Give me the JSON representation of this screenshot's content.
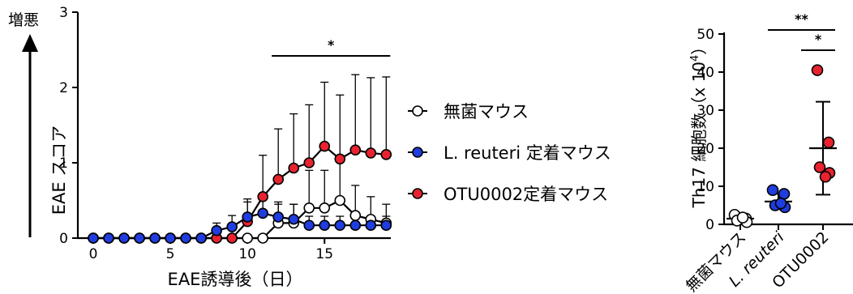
{
  "side_label": "増悪",
  "chart_data": [
    {
      "type": "line",
      "xlabel": "EAE誘導後（日）",
      "ylabel": "EAE スコア",
      "xlim": [
        -1,
        19.3
      ],
      "ylim": [
        0,
        3
      ],
      "xticks": [
        0,
        5,
        10,
        15
      ],
      "yticks": [
        0,
        1,
        2,
        3
      ],
      "annotations": [
        {
          "text": "*",
          "x_range": [
            12,
            19
          ]
        }
      ],
      "series": [
        {
          "name": "無菌マウス",
          "color": "#ffffff",
          "x": [
            0,
            1,
            2,
            3,
            4,
            5,
            6,
            7,
            8,
            9,
            10,
            11,
            12,
            13,
            14,
            15,
            16,
            17,
            18,
            19
          ],
          "y": [
            0,
            0,
            0,
            0,
            0,
            0,
            0,
            0,
            0,
            0,
            0,
            0,
            0.2,
            0.2,
            0.4,
            0.4,
            0.5,
            0.3,
            0.25,
            0.2
          ],
          "error": [
            0,
            0,
            0,
            0,
            0,
            0,
            0,
            0,
            0,
            0,
            0,
            0,
            0.25,
            0.25,
            0.5,
            0.5,
            0.6,
            0.4,
            0.3,
            0.25
          ]
        },
        {
          "name": "L. reuteri 定着マウス",
          "color": "#1f3de0",
          "x": [
            0,
            1,
            2,
            3,
            4,
            5,
            6,
            7,
            8,
            9,
            10,
            11,
            12,
            13,
            14,
            15,
            16,
            17,
            18,
            19
          ],
          "y": [
            0,
            0,
            0,
            0,
            0,
            0,
            0,
            0,
            0.1,
            0.15,
            0.28,
            0.33,
            0.28,
            0.25,
            0.17,
            0.17,
            0.17,
            0.17,
            0.17,
            0.17
          ],
          "error": [
            0,
            0,
            0,
            0,
            0,
            0,
            0,
            0,
            0.1,
            0.15,
            0.2,
            0.25,
            0.2,
            0.2,
            0.12,
            0.12,
            0.12,
            0.12,
            0.12,
            0.12
          ]
        },
        {
          "name": "OTU0002定着マウス",
          "color": "#e8232f",
          "x": [
            0,
            1,
            2,
            3,
            4,
            5,
            6,
            7,
            8,
            9,
            10,
            11,
            12,
            13,
            14,
            15,
            16,
            17,
            18,
            19
          ],
          "y": [
            0,
            0,
            0,
            0,
            0,
            0,
            0,
            0,
            0,
            0,
            0.22,
            0.55,
            0.78,
            0.93,
            1.0,
            1.22,
            1.05,
            1.17,
            1.13,
            1.11
          ],
          "error": [
            0,
            0,
            0,
            0,
            0,
            0,
            0,
            0,
            0,
            0,
            0.3,
            0.55,
            0.67,
            0.72,
            0.77,
            0.85,
            0.85,
            1.0,
            1.0,
            1.03
          ]
        }
      ]
    },
    {
      "type": "scatter",
      "ylabel": "Th17 細胞数（x 10",
      "ylabel_sup": "4",
      "ylabel_close": "）",
      "ylim": [
        0,
        50
      ],
      "yticks": [
        0,
        10,
        20,
        30,
        40,
        50
      ],
      "categories": [
        "無菌マウス",
        "L. reuteri",
        "OTU0002"
      ],
      "annotations": [
        {
          "text": "**",
          "between": [
            "無菌マウス",
            "OTU0002"
          ]
        },
        {
          "text": "*",
          "between": [
            "L. reuteri",
            "OTU0002"
          ]
        }
      ],
      "groups": [
        {
          "category": "無菌マウス",
          "color": "#ffffff",
          "points": [
            2.5,
            1.5,
            1,
            0.6,
            1.8
          ],
          "mean": 1.5,
          "sd": 0.8
        },
        {
          "category": "L. reuteri",
          "color": "#1f3de0",
          "points": [
            9,
            8,
            5,
            4.5,
            5.5
          ],
          "mean": 6,
          "sd": 2
        },
        {
          "category": "OTU0002",
          "color": "#e8232f",
          "points": [
            40.5,
            21.5,
            15,
            13.5,
            12.5
          ],
          "mean": 20,
          "sd": 12.2
        }
      ]
    }
  ]
}
